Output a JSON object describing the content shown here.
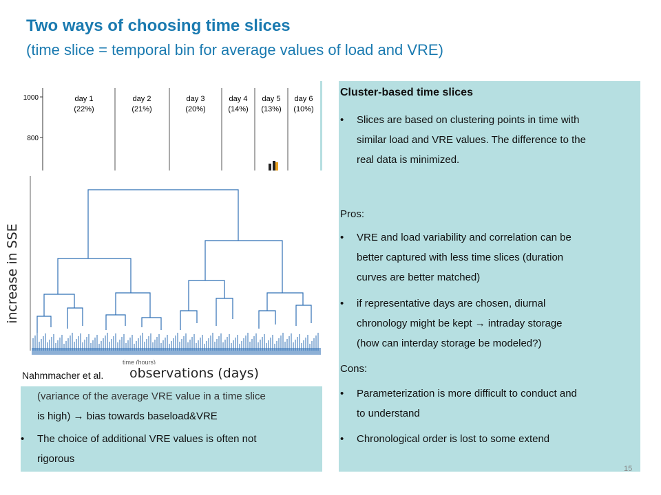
{
  "header": {
    "title": "Two ways of choosing time slices",
    "subtitle": "(time slice = temporal bin for average values of load and VRE)"
  },
  "day_chart": {
    "yticks": [
      "1000",
      "800"
    ],
    "days": [
      {
        "label": "day 1",
        "share": "(22%)"
      },
      {
        "label": "day 2",
        "share": "(21%)"
      },
      {
        "label": "day 3",
        "share": "(20%)"
      },
      {
        "label": "day 4",
        "share": "(14%)"
      },
      {
        "label": "day 5",
        "share": "(13%)"
      },
      {
        "label": "day 6",
        "share": "(10%)"
      }
    ]
  },
  "dendrogram": {
    "ylabel": "increase in SSE",
    "xlabel_small": "time (hours)",
    "xlabel": "observations (days)",
    "citation": "Nahmmacher et al."
  },
  "left_panel": {
    "partial_line1": "(variance of the average VRE value in a time slice",
    "partial_line2": "is high) → bias towards baseload&VRE",
    "bullet2_line1": "The choice of additional VRE values is often not",
    "bullet2_line2": "rigorous"
  },
  "right_panel": {
    "heading": "Cluster-based time slices",
    "b1": [
      "Slices are based on clustering points in time with",
      "similar load and VRE values. The difference to the",
      "real data is minimized."
    ],
    "pros_label": "Pros:",
    "p1": [
      "VRE and load variability and correlation can be",
      "better captured with less time slices (duration",
      "curves are better matched)"
    ],
    "p2": [
      "if representative days are chosen, diurnal",
      "chronology might be kept → intraday storage",
      "(how can interday storage be modeled?)"
    ],
    "cons_label": "Cons:",
    "c1": [
      "Parameterization is more difficult to conduct and",
      "to understand"
    ],
    "c2": [
      "Chronological order is lost to some extend"
    ],
    "bullet_char": "•"
  },
  "page_number": "15"
}
